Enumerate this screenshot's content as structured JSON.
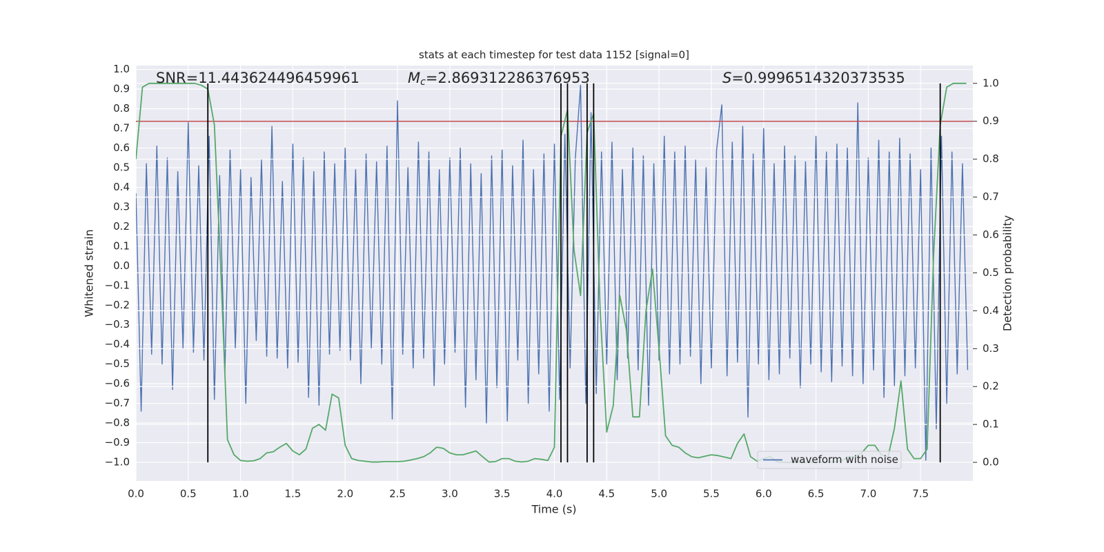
{
  "chart_data": {
    "type": "line",
    "title": "stats at each timestep for test data 1152 [signal=0]",
    "xlabel": "Time (s)",
    "ylabel": "Whitened strain",
    "y2label": "Detection probability",
    "annotations": [
      {
        "text": "SNR=11.443624496459961"
      },
      {
        "symbol": "M",
        "subscript": "c",
        "text": "=2.869312286376953"
      },
      {
        "symbol": "S",
        "text": "=0.9996514320373535"
      }
    ],
    "xlim": [
      0,
      8
    ],
    "ylim": [
      -1.095,
      1.02
    ],
    "y2lim": [
      -0.049,
      1.047
    ],
    "xticks": [
      {
        "value": 0,
        "label": "0.0"
      },
      0.5,
      {
        "value": 1,
        "label": "1.0"
      },
      1.5,
      {
        "value": 2,
        "label": "2.0"
      },
      2.5,
      {
        "value": 3,
        "label": "3.0"
      },
      3.5,
      {
        "value": 4,
        "label": "4.0"
      },
      4.5,
      {
        "value": 5,
        "label": "5.0"
      },
      5.5,
      {
        "value": 6,
        "label": "6.0"
      },
      6.5,
      {
        "value": 7,
        "label": "7.0"
      },
      7.5
    ],
    "yticks": [
      {
        "value": -1,
        "label": "−1.0"
      },
      {
        "value": -0.9,
        "label": "−0.9"
      },
      {
        "value": -0.8,
        "label": "−0.8"
      },
      {
        "value": -0.7,
        "label": "−0.7"
      },
      {
        "value": -0.6,
        "label": "−0.6"
      },
      {
        "value": -0.5,
        "label": "−0.5"
      },
      {
        "value": -0.4,
        "label": "−0.4"
      },
      {
        "value": -0.3,
        "label": "−0.3"
      },
      {
        "value": -0.2,
        "label": "−0.2"
      },
      {
        "value": -0.1,
        "label": "−0.1"
      },
      {
        "value": 0,
        "label": "0.0"
      },
      0.1,
      0.2,
      0.3,
      0.4,
      0.5,
      0.6,
      0.7,
      0.8,
      0.9,
      {
        "value": 1,
        "label": "1.0"
      }
    ],
    "y2ticks": [
      {
        "value": 0,
        "label": "0.0"
      },
      0.1,
      0.2,
      0.3,
      0.4,
      0.5,
      0.6,
      0.7,
      0.8,
      0.9,
      {
        "value": 1,
        "label": "1.0"
      }
    ],
    "grid": true,
    "legend": "lower right",
    "series": [
      {
        "name": "waveform with noise",
        "color": "#4c72b0",
        "x": [
          0,
          0.05,
          0.1,
          0.15,
          0.2,
          0.25,
          0.3,
          0.35,
          0.4,
          0.45,
          0.5,
          0.55,
          0.6,
          0.65,
          0.7,
          0.75,
          0.8,
          0.85,
          0.9,
          0.95,
          1,
          1.05,
          1.1,
          1.15,
          1.2,
          1.25,
          1.3,
          1.35,
          1.4,
          1.45,
          1.5,
          1.55,
          1.6,
          1.65,
          1.7,
          1.75,
          1.8,
          1.85,
          1.9,
          1.95,
          2,
          2.05,
          2.1,
          2.15,
          2.2,
          2.25,
          2.3,
          2.35,
          2.4,
          2.45,
          2.5,
          2.55,
          2.6,
          2.65,
          2.7,
          2.75,
          2.8,
          2.85,
          2.9,
          2.95,
          3,
          3.05,
          3.1,
          3.15,
          3.2,
          3.25,
          3.3,
          3.35,
          3.4,
          3.45,
          3.5,
          3.55,
          3.6,
          3.65,
          3.7,
          3.75,
          3.8,
          3.85,
          3.9,
          3.95,
          4,
          4.05,
          4.1,
          4.15,
          4.2,
          4.25,
          4.3,
          4.35,
          4.4,
          4.45,
          4.5,
          4.55,
          4.6,
          4.65,
          4.7,
          4.75,
          4.8,
          4.85,
          4.9,
          4.95,
          5,
          5.05,
          5.1,
          5.15,
          5.2,
          5.25,
          5.3,
          5.35,
          5.4,
          5.45,
          5.5,
          5.55,
          5.6,
          5.65,
          5.7,
          5.75,
          5.8,
          5.85,
          5.9,
          5.95,
          6,
          6.05,
          6.1,
          6.15,
          6.2,
          6.25,
          6.3,
          6.35,
          6.4,
          6.45,
          6.5,
          6.55,
          6.6,
          6.65,
          6.7,
          6.75,
          6.8,
          6.85,
          6.9,
          6.95,
          7,
          7.05,
          7.1,
          7.15,
          7.2,
          7.25,
          7.3,
          7.35,
          7.4,
          7.45,
          7.5,
          7.55,
          7.6,
          7.65,
          7.7,
          7.75,
          7.8,
          7.85,
          7.9,
          7.95
        ],
        "values": [
          0.37,
          -0.74,
          0.52,
          -0.45,
          0.61,
          -0.5,
          0.55,
          -0.63,
          0.48,
          -0.42,
          0.73,
          -0.44,
          0.51,
          -0.48,
          0.66,
          -0.68,
          0.46,
          -0.55,
          0.59,
          -0.42,
          0.49,
          -0.7,
          0.45,
          -0.38,
          0.54,
          -0.46,
          0.71,
          -0.47,
          0.43,
          -0.52,
          0.62,
          -0.49,
          0.55,
          -0.67,
          0.48,
          -0.71,
          0.58,
          -0.45,
          0.52,
          -0.43,
          0.6,
          -0.48,
          0.49,
          -0.6,
          0.57,
          -0.42,
          0.53,
          -0.5,
          0.61,
          -0.78,
          0.84,
          -0.45,
          0.5,
          -0.52,
          0.63,
          -0.47,
          0.58,
          -0.61,
          0.49,
          -0.5,
          0.55,
          -0.44,
          0.6,
          -0.72,
          0.52,
          -0.58,
          0.47,
          -0.8,
          0.56,
          -0.62,
          0.59,
          -0.79,
          0.51,
          -0.48,
          0.64,
          -0.7,
          0.49,
          -0.55,
          0.57,
          -0.74,
          0.62,
          -0.68,
          0.67,
          -0.52,
          0.55,
          0.92,
          -0.7,
          0.78,
          -0.65,
          0.58,
          -0.5,
          0.63,
          -0.58,
          0.49,
          -0.47,
          0.6,
          -0.53,
          0.56,
          -0.71,
          0.52,
          -0.48,
          0.66,
          -0.55,
          0.58,
          -0.5,
          0.61,
          -0.46,
          0.54,
          -0.6,
          0.5,
          -0.52,
          0.59,
          0.82,
          -0.56,
          0.63,
          -0.49,
          0.71,
          -0.77,
          0.57,
          -0.5,
          0.7,
          -0.58,
          0.52,
          -0.55,
          0.61,
          -0.47,
          0.56,
          -0.62,
          0.53,
          -0.5,
          0.66,
          -0.54,
          0.58,
          -0.59,
          0.62,
          -0.51,
          0.6,
          -0.56,
          0.83,
          -0.6,
          0.55,
          -0.53,
          0.64,
          -0.67,
          0.58,
          -0.61,
          0.65,
          -0.56,
          0.57,
          -0.52,
          0.49,
          -0.99,
          0.6,
          -0.83,
          0.66,
          -0.7,
          0.58,
          -0.55,
          0.52,
          -0.53
        ]
      },
      {
        "color": "#55a868",
        "axis": "y2",
        "x": [
          0,
          0.0625,
          0.125,
          0.1875,
          0.25,
          0.3125,
          0.375,
          0.4375,
          0.5,
          0.5625,
          0.625,
          0.6875,
          0.75,
          0.8125,
          0.875,
          0.9375,
          1,
          1.0625,
          1.125,
          1.1875,
          1.25,
          1.3125,
          1.375,
          1.4375,
          1.5,
          1.5625,
          1.625,
          1.6875,
          1.75,
          1.8125,
          1.875,
          1.9375,
          2,
          2.0625,
          2.125,
          2.1875,
          2.25,
          2.3125,
          2.375,
          2.4375,
          2.5,
          2.5625,
          2.625,
          2.6875,
          2.75,
          2.8125,
          2.875,
          2.9375,
          3,
          3.0625,
          3.125,
          3.1875,
          3.25,
          3.3125,
          3.375,
          3.4375,
          3.5,
          3.5625,
          3.625,
          3.6875,
          3.75,
          3.8125,
          3.875,
          3.9375,
          4,
          4.0625,
          4.125,
          4.1875,
          4.25,
          4.3125,
          4.375,
          4.4375,
          4.5,
          4.5625,
          4.625,
          4.6875,
          4.75,
          4.8125,
          4.875,
          4.9375,
          5,
          5.0625,
          5.125,
          5.1875,
          5.25,
          5.3125,
          5.375,
          5.4375,
          5.5,
          5.5625,
          5.625,
          5.6875,
          5.75,
          5.8125,
          5.875,
          5.9375,
          6,
          6.0625,
          6.125,
          6.1875,
          6.25,
          6.3125,
          6.375,
          6.4375,
          6.5,
          6.5625,
          6.625,
          6.6875,
          6.75,
          6.8125,
          6.875,
          6.9375,
          7,
          7.0625,
          7.125,
          7.1875,
          7.25,
          7.3125,
          7.375,
          7.4375,
          7.5,
          7.5625,
          7.625,
          7.6875,
          7.75,
          7.8125,
          7.875,
          7.9375
        ],
        "values": [
          0.8,
          0.99,
          1,
          1,
          1,
          1,
          1,
          1,
          1,
          1,
          0.995,
          0.985,
          0.89,
          0.5,
          0.06,
          0.02,
          0.005,
          0.003,
          0.004,
          0.01,
          0.025,
          0.028,
          0.04,
          0.05,
          0.03,
          0.02,
          0.035,
          0.09,
          0.1,
          0.085,
          0.18,
          0.17,
          0.045,
          0.01,
          0.005,
          0.003,
          0.001,
          0.001,
          0.002,
          0.002,
          0.002,
          0.003,
          0.006,
          0.01,
          0.015,
          0.025,
          0.04,
          0.037,
          0.025,
          0.02,
          0.02,
          0.025,
          0.03,
          0.015,
          0.001,
          0.002,
          0.01,
          0.01,
          0.003,
          0.001,
          0.003,
          0.01,
          0.008,
          0.005,
          0.04,
          0.86,
          0.93,
          0.56,
          0.44,
          0.87,
          0.92,
          0.4,
          0.08,
          0.15,
          0.44,
          0.35,
          0.12,
          0.12,
          0.4,
          0.51,
          0.3,
          0.07,
          0.045,
          0.04,
          0.025,
          0.015,
          0.012,
          0.016,
          0.02,
          0.018,
          0.014,
          0.01,
          0.05,
          0.075,
          0.015,
          0.003,
          0.01,
          0.015,
          0.002,
          0,
          0,
          0.001,
          0.001,
          0,
          0,
          0.001,
          0.001,
          0.002,
          0.005,
          0.015,
          0.015,
          0.025,
          0.045,
          0.045,
          0.02,
          0.013,
          0.09,
          0.215,
          0.035,
          0.01,
          0.01,
          0.035,
          0.55,
          0.89,
          0.99,
          1,
          1,
          1
        ]
      }
    ],
    "threshold": {
      "value": 0.9,
      "color": "#c44e52"
    },
    "events": [
      0.6875,
      4.0625,
      4.125,
      4.3125,
      4.375,
      7.6875
    ],
    "event_color": "#000000"
  }
}
